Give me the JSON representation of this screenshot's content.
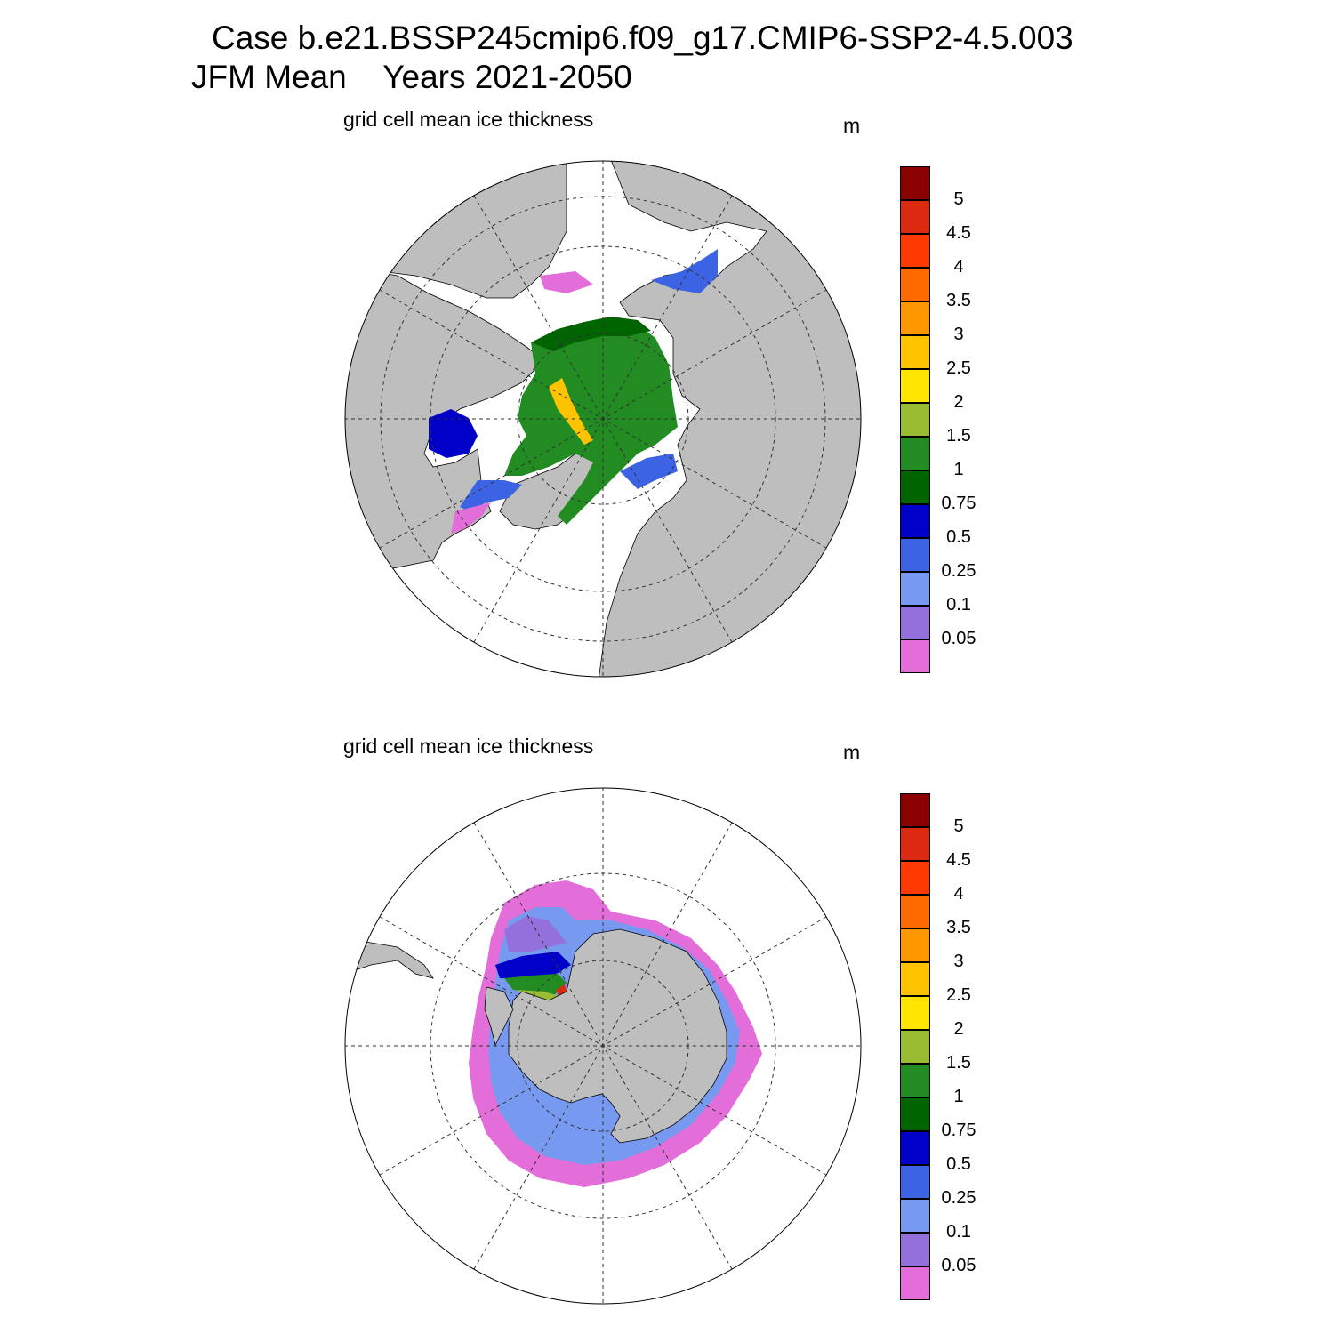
{
  "title": {
    "line1": "Case b.e21.BSSP245cmip6.f09_g17.CMIP6-SSP2-4.5.003",
    "line2": "JFM Mean    Years 2021-2050"
  },
  "panels": [
    {
      "hemisphere": "north",
      "subtitle": "grid cell mean ice thickness",
      "units": "m"
    },
    {
      "hemisphere": "south",
      "subtitle": "grid cell mean ice thickness",
      "units": "m"
    }
  ],
  "colorbar": {
    "labels": [
      "5",
      "4.5",
      "4",
      "3.5",
      "3",
      "2.5",
      "2",
      "1.5",
      "1",
      "0.75",
      "0.5",
      "0.25",
      "0.1",
      "0.05"
    ],
    "colors": [
      "#8b0000",
      "#dc2a12",
      "#ff3a00",
      "#ff6a00",
      "#ff9700",
      "#ffc300",
      "#ffe500",
      "#9abc32",
      "#228b22",
      "#006400",
      "#0000c8",
      "#3b63e4",
      "#7799f0",
      "#9370db",
      "#e36ed9"
    ]
  },
  "map_colors": {
    "land": "#bebebe",
    "ocean": "#ffffff"
  }
}
